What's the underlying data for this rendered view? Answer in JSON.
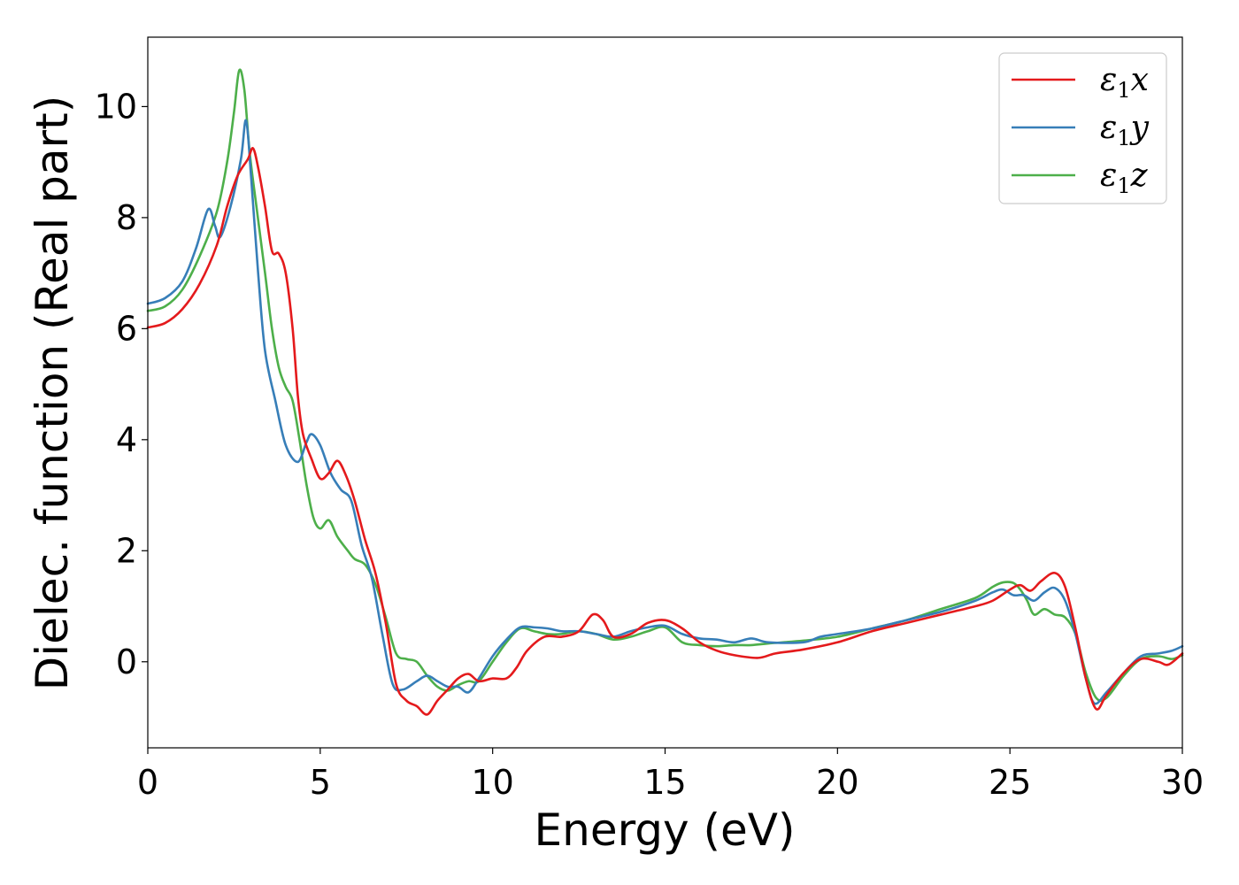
{
  "chart_data": {
    "type": "line",
    "xlabel": "Energy (eV)",
    "ylabel": "Dielec. function (Real part)",
    "xlim": [
      0,
      30
    ],
    "ylim": [
      -1.55,
      11.25
    ],
    "x_ticks": [
      0,
      5,
      10,
      15,
      20,
      25,
      30
    ],
    "y_ticks": [
      0,
      2,
      4,
      6,
      8,
      10
    ],
    "grid": false,
    "legend_position": "top-right",
    "series": [
      {
        "name": "ε₁x",
        "legend_main": "ε",
        "legend_sub": "1",
        "legend_var": "x",
        "color": "#e41a1c",
        "points": [
          [
            0,
            6.02
          ],
          [
            0.5,
            6.1
          ],
          [
            1.0,
            6.35
          ],
          [
            1.5,
            6.8
          ],
          [
            2.0,
            7.5
          ],
          [
            2.3,
            8.2
          ],
          [
            2.6,
            8.75
          ],
          [
            2.9,
            9.05
          ],
          [
            3.05,
            9.25
          ],
          [
            3.2,
            8.9
          ],
          [
            3.4,
            8.2
          ],
          [
            3.6,
            7.4
          ],
          [
            3.8,
            7.35
          ],
          [
            4.0,
            7.0
          ],
          [
            4.2,
            6.0
          ],
          [
            4.35,
            4.8
          ],
          [
            4.5,
            4.1
          ],
          [
            4.75,
            3.65
          ],
          [
            5.0,
            3.3
          ],
          [
            5.25,
            3.4
          ],
          [
            5.5,
            3.62
          ],
          [
            5.75,
            3.35
          ],
          [
            6.0,
            2.9
          ],
          [
            6.3,
            2.2
          ],
          [
            6.6,
            1.6
          ],
          [
            6.9,
            0.7
          ],
          [
            7.2,
            -0.4
          ],
          [
            7.5,
            -0.7
          ],
          [
            7.8,
            -0.8
          ],
          [
            8.1,
            -0.95
          ],
          [
            8.4,
            -0.7
          ],
          [
            8.7,
            -0.5
          ],
          [
            9.0,
            -0.3
          ],
          [
            9.3,
            -0.22
          ],
          [
            9.6,
            -0.35
          ],
          [
            10.0,
            -0.3
          ],
          [
            10.4,
            -0.3
          ],
          [
            10.7,
            -0.1
          ],
          [
            11.0,
            0.2
          ],
          [
            11.5,
            0.45
          ],
          [
            12.0,
            0.45
          ],
          [
            12.5,
            0.55
          ],
          [
            12.9,
            0.85
          ],
          [
            13.2,
            0.75
          ],
          [
            13.5,
            0.45
          ],
          [
            14.0,
            0.5
          ],
          [
            14.5,
            0.7
          ],
          [
            15.0,
            0.75
          ],
          [
            15.5,
            0.6
          ],
          [
            16.0,
            0.35
          ],
          [
            16.5,
            0.2
          ],
          [
            17.0,
            0.12
          ],
          [
            17.7,
            0.07
          ],
          [
            18.2,
            0.15
          ],
          [
            19.0,
            0.22
          ],
          [
            20.0,
            0.35
          ],
          [
            21.0,
            0.55
          ],
          [
            22.0,
            0.7
          ],
          [
            23.0,
            0.85
          ],
          [
            24.0,
            1.0
          ],
          [
            24.5,
            1.1
          ],
          [
            25.0,
            1.3
          ],
          [
            25.3,
            1.38
          ],
          [
            25.6,
            1.28
          ],
          [
            25.9,
            1.45
          ],
          [
            26.3,
            1.6
          ],
          [
            26.6,
            1.35
          ],
          [
            26.9,
            0.6
          ],
          [
            27.2,
            -0.3
          ],
          [
            27.5,
            -0.85
          ],
          [
            27.8,
            -0.6
          ],
          [
            28.3,
            -0.2
          ],
          [
            28.8,
            0.05
          ],
          [
            29.3,
            0.0
          ],
          [
            29.6,
            -0.05
          ],
          [
            30.0,
            0.15
          ]
        ]
      },
      {
        "name": "ε₁y",
        "legend_main": "ε",
        "legend_sub": "1",
        "legend_var": "y",
        "color": "#377eb8",
        "points": [
          [
            0,
            6.45
          ],
          [
            0.5,
            6.55
          ],
          [
            1.0,
            6.85
          ],
          [
            1.4,
            7.45
          ],
          [
            1.75,
            8.15
          ],
          [
            1.95,
            7.85
          ],
          [
            2.1,
            7.65
          ],
          [
            2.4,
            8.2
          ],
          [
            2.7,
            9.05
          ],
          [
            2.85,
            9.75
          ],
          [
            3.0,
            8.7
          ],
          [
            3.2,
            7.0
          ],
          [
            3.4,
            5.6
          ],
          [
            3.7,
            4.7
          ],
          [
            4.0,
            3.9
          ],
          [
            4.35,
            3.6
          ],
          [
            4.6,
            3.95
          ],
          [
            4.75,
            4.1
          ],
          [
            5.0,
            3.9
          ],
          [
            5.3,
            3.4
          ],
          [
            5.6,
            3.1
          ],
          [
            5.9,
            2.9
          ],
          [
            6.2,
            2.1
          ],
          [
            6.5,
            1.5
          ],
          [
            6.8,
            0.5
          ],
          [
            7.1,
            -0.4
          ],
          [
            7.4,
            -0.5
          ],
          [
            7.8,
            -0.35
          ],
          [
            8.1,
            -0.25
          ],
          [
            8.4,
            -0.35
          ],
          [
            8.7,
            -0.45
          ],
          [
            9.0,
            -0.45
          ],
          [
            9.3,
            -0.55
          ],
          [
            9.6,
            -0.3
          ],
          [
            10.0,
            0.1
          ],
          [
            10.4,
            0.4
          ],
          [
            10.8,
            0.62
          ],
          [
            11.2,
            0.62
          ],
          [
            11.6,
            0.6
          ],
          [
            12.0,
            0.55
          ],
          [
            12.5,
            0.55
          ],
          [
            13.0,
            0.5
          ],
          [
            13.5,
            0.45
          ],
          [
            14.0,
            0.55
          ],
          [
            14.5,
            0.62
          ],
          [
            15.0,
            0.65
          ],
          [
            15.5,
            0.5
          ],
          [
            16.0,
            0.42
          ],
          [
            16.5,
            0.4
          ],
          [
            17.0,
            0.35
          ],
          [
            17.5,
            0.42
          ],
          [
            18.0,
            0.35
          ],
          [
            19.0,
            0.35
          ],
          [
            19.5,
            0.45
          ],
          [
            20.0,
            0.5
          ],
          [
            21.0,
            0.6
          ],
          [
            22.0,
            0.75
          ],
          [
            23.0,
            0.9
          ],
          [
            24.0,
            1.1
          ],
          [
            24.5,
            1.25
          ],
          [
            24.8,
            1.3
          ],
          [
            25.1,
            1.2
          ],
          [
            25.4,
            1.2
          ],
          [
            25.7,
            1.1
          ],
          [
            26.0,
            1.25
          ],
          [
            26.3,
            1.33
          ],
          [
            26.6,
            1.1
          ],
          [
            26.9,
            0.5
          ],
          [
            27.2,
            -0.3
          ],
          [
            27.45,
            -0.75
          ],
          [
            27.8,
            -0.55
          ],
          [
            28.3,
            -0.2
          ],
          [
            28.8,
            0.1
          ],
          [
            29.3,
            0.15
          ],
          [
            29.7,
            0.2
          ],
          [
            30.0,
            0.28
          ]
        ]
      },
      {
        "name": "ε₁z",
        "legend_main": "ε",
        "legend_sub": "1",
        "legend_var": "z",
        "color": "#4daf4a",
        "points": [
          [
            0,
            6.32
          ],
          [
            0.5,
            6.4
          ],
          [
            1.0,
            6.7
          ],
          [
            1.5,
            7.3
          ],
          [
            2.0,
            8.1
          ],
          [
            2.3,
            9.0
          ],
          [
            2.5,
            9.9
          ],
          [
            2.65,
            10.65
          ],
          [
            2.8,
            10.3
          ],
          [
            2.95,
            9.2
          ],
          [
            3.15,
            8.2
          ],
          [
            3.4,
            7.0
          ],
          [
            3.6,
            6.0
          ],
          [
            3.8,
            5.3
          ],
          [
            4.0,
            4.95
          ],
          [
            4.2,
            4.7
          ],
          [
            4.4,
            4.0
          ],
          [
            4.6,
            3.2
          ],
          [
            4.8,
            2.6
          ],
          [
            5.0,
            2.4
          ],
          [
            5.25,
            2.55
          ],
          [
            5.5,
            2.25
          ],
          [
            5.8,
            2.0
          ],
          [
            6.0,
            1.85
          ],
          [
            6.3,
            1.75
          ],
          [
            6.6,
            1.4
          ],
          [
            6.9,
            0.8
          ],
          [
            7.2,
            0.15
          ],
          [
            7.5,
            0.05
          ],
          [
            7.8,
            0.0
          ],
          [
            8.1,
            -0.25
          ],
          [
            8.4,
            -0.45
          ],
          [
            8.7,
            -0.52
          ],
          [
            9.0,
            -0.42
          ],
          [
            9.3,
            -0.35
          ],
          [
            9.6,
            -0.35
          ],
          [
            10.0,
            0.0
          ],
          [
            10.4,
            0.35
          ],
          [
            10.8,
            0.6
          ],
          [
            11.2,
            0.55
          ],
          [
            11.6,
            0.5
          ],
          [
            12.0,
            0.5
          ],
          [
            12.5,
            0.55
          ],
          [
            13.0,
            0.5
          ],
          [
            13.5,
            0.4
          ],
          [
            14.0,
            0.45
          ],
          [
            14.5,
            0.55
          ],
          [
            15.0,
            0.62
          ],
          [
            15.5,
            0.35
          ],
          [
            16.0,
            0.3
          ],
          [
            16.5,
            0.28
          ],
          [
            17.0,
            0.3
          ],
          [
            17.5,
            0.3
          ],
          [
            18.0,
            0.33
          ],
          [
            19.0,
            0.38
          ],
          [
            20.0,
            0.45
          ],
          [
            21.0,
            0.6
          ],
          [
            22.0,
            0.75
          ],
          [
            23.0,
            0.95
          ],
          [
            24.0,
            1.15
          ],
          [
            24.5,
            1.35
          ],
          [
            24.8,
            1.43
          ],
          [
            25.1,
            1.42
          ],
          [
            25.3,
            1.3
          ],
          [
            25.5,
            1.1
          ],
          [
            25.7,
            0.85
          ],
          [
            26.0,
            0.95
          ],
          [
            26.3,
            0.85
          ],
          [
            26.6,
            0.8
          ],
          [
            26.9,
            0.5
          ],
          [
            27.2,
            -0.2
          ],
          [
            27.5,
            -0.65
          ],
          [
            27.8,
            -0.65
          ],
          [
            28.3,
            -0.25
          ],
          [
            28.8,
            0.05
          ],
          [
            29.3,
            0.1
          ],
          [
            29.7,
            0.05
          ],
          [
            30.0,
            0.12
          ]
        ]
      }
    ]
  }
}
